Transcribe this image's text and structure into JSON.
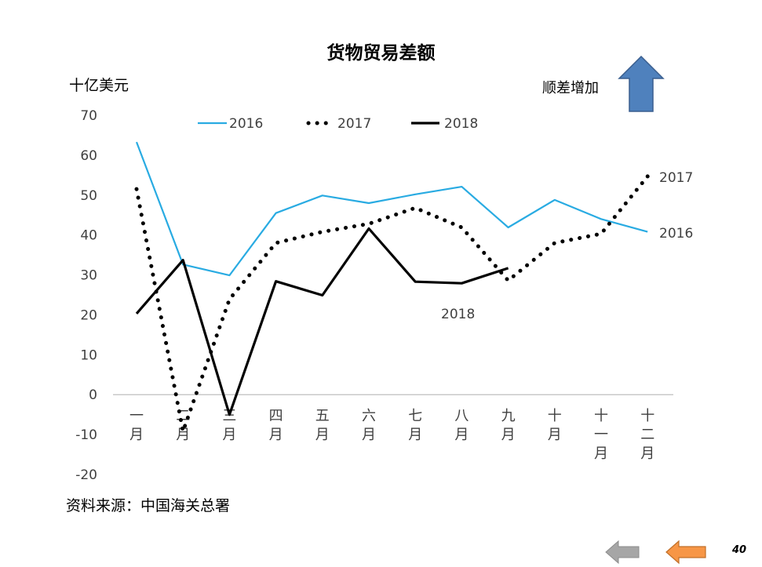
{
  "chart_data": {
    "type": "line",
    "title": "货物贸易差额",
    "ylabel": "十亿美元",
    "ylim": [
      -20,
      70
    ],
    "yticks": [
      70,
      60,
      50,
      40,
      30,
      20,
      10,
      0,
      -10,
      -20
    ],
    "grid": false,
    "legend_position": "top",
    "categories": [
      "一月",
      "二月",
      "三月",
      "四月",
      "五月",
      "六月",
      "七月",
      "八月",
      "九月",
      "十月",
      "十一月",
      "十二月"
    ],
    "category_glyphs": [
      [
        "一",
        "月"
      ],
      [
        "二",
        "月"
      ],
      [
        "三",
        "月"
      ],
      [
        "四",
        "月"
      ],
      [
        "五",
        "月"
      ],
      [
        "六",
        "月"
      ],
      [
        "七",
        "月"
      ],
      [
        "八",
        "月"
      ],
      [
        "九",
        "月"
      ],
      [
        "十",
        "月"
      ],
      [
        "十",
        "一",
        "月"
      ],
      [
        "十",
        "二",
        "月"
      ]
    ],
    "series": [
      {
        "name": "2016",
        "color": "#29abe2",
        "style": "solid",
        "values": [
          63.3,
          32.6,
          29.9,
          45.5,
          49.9,
          48.0,
          50.2,
          52.1,
          41.9,
          48.8,
          44.0,
          40.8
        ],
        "end_label": "2016"
      },
      {
        "name": "2017",
        "color": "#000000",
        "style": "dotted",
        "values": [
          51.5,
          -9.2,
          23.9,
          38.0,
          40.8,
          42.8,
          46.8,
          41.9,
          28.6,
          38.0,
          40.3,
          54.7
        ],
        "end_label": "2017"
      },
      {
        "name": "2018",
        "color": "#000000",
        "style": "solid",
        "values": [
          20.3,
          33.7,
          -5.0,
          28.4,
          24.9,
          41.6,
          28.3,
          27.9,
          31.7,
          null,
          null,
          null
        ],
        "end_label": "2018"
      }
    ]
  },
  "notes": {
    "trend": "顺差增加",
    "source": "资料来源：中国海关总署",
    "page_number": "40"
  },
  "colors": {
    "arrow_up": "#4f81bd",
    "arrow_back": "#a6a6a6",
    "arrow_forward": "#f79646"
  },
  "icons": {
    "trend_arrow": "up-arrow-icon",
    "nav_back": "left-arrow-icon",
    "nav_forward": "left-arrow-icon"
  }
}
